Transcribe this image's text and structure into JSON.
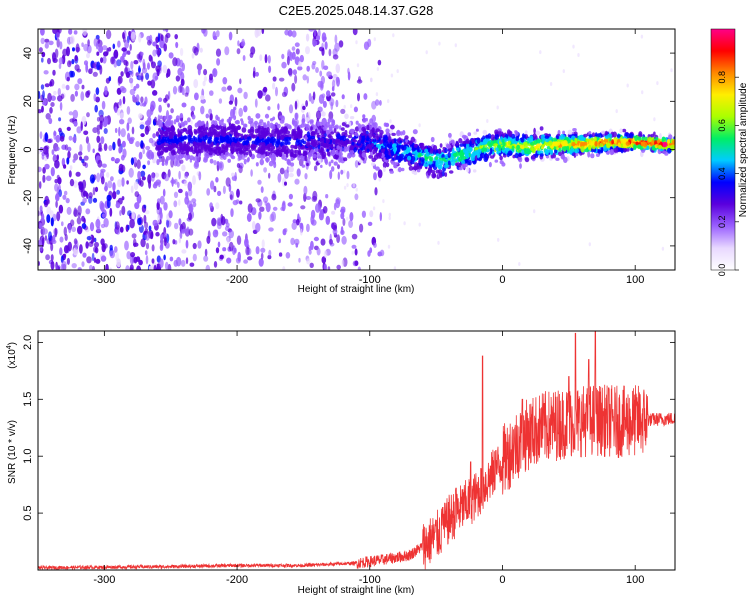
{
  "title": "C2E5.2025.048.14.37.G28",
  "spectrogram": {
    "type": "heatmap",
    "xlabel": "Height of straight line (km)",
    "ylabel": "Frequency (Hz)",
    "xlim": [
      -350,
      130
    ],
    "ylim": [
      -50,
      50
    ],
    "xticks": [
      "-300",
      "-200",
      "-100",
      "0",
      "100"
    ],
    "xtick_values": [
      -300,
      -200,
      -100,
      0,
      100
    ],
    "yticks": [
      "-40",
      "-20",
      "0",
      "20",
      "40"
    ],
    "ytick_values": [
      -40,
      -20,
      0,
      20,
      40
    ],
    "ridge_points": [
      {
        "x": -250,
        "y": 4
      },
      {
        "x": -200,
        "y": 4
      },
      {
        "x": -150,
        "y": 3
      },
      {
        "x": -100,
        "y": 3
      },
      {
        "x": -80,
        "y": 0
      },
      {
        "x": -60,
        "y": -3
      },
      {
        "x": -45,
        "y": -5
      },
      {
        "x": -30,
        "y": -2
      },
      {
        "x": -15,
        "y": 1
      },
      {
        "x": 0,
        "y": 2
      },
      {
        "x": 20,
        "y": 1
      },
      {
        "x": 40,
        "y": 2
      },
      {
        "x": 60,
        "y": 2
      },
      {
        "x": 80,
        "y": 3
      },
      {
        "x": 100,
        "y": 3
      },
      {
        "x": 130,
        "y": 2
      }
    ]
  },
  "colorbar": {
    "label": "Normalized spectral amplitude",
    "range": [
      0,
      1
    ],
    "ticks": [
      "0.0",
      "0.2",
      "0.4",
      "0.6",
      "0.8"
    ],
    "tick_values": [
      0.0,
      0.2,
      0.4,
      0.6,
      0.8
    ],
    "colors": [
      "#ffffff",
      "#e8d8ff",
      "#9a60ff",
      "#5a00dd",
      "#0000ff",
      "#00ccff",
      "#00ee66",
      "#aaff00",
      "#ffee00",
      "#ff8800",
      "#ff0000",
      "#ff0088"
    ]
  },
  "chart_data": {
    "type": "line",
    "xlabel": "Height of straight line (km)",
    "ylabel": "SNR (10 * v/v)",
    "scale_label": "(x10",
    "scale_exp": "4",
    "xlim": [
      -350,
      130
    ],
    "ylim": [
      0,
      2.1
    ],
    "xticks": [
      "-300",
      "-200",
      "-100",
      "0",
      "100"
    ],
    "xtick_values": [
      -300,
      -200,
      -100,
      0,
      100
    ],
    "yticks": [
      "0.5",
      "1.0",
      "1.5",
      "2.0"
    ],
    "ytick_values": [
      0.5,
      1.0,
      1.5,
      2.0
    ],
    "color": "#ee3333",
    "envelope": [
      {
        "x": -350,
        "y": 0.02
      },
      {
        "x": -250,
        "y": 0.03
      },
      {
        "x": -200,
        "y": 0.04
      },
      {
        "x": -150,
        "y": 0.04
      },
      {
        "x": -110,
        "y": 0.06
      },
      {
        "x": -90,
        "y": 0.09
      },
      {
        "x": -70,
        "y": 0.13
      },
      {
        "x": -55,
        "y": 0.25
      },
      {
        "x": -45,
        "y": 0.35
      },
      {
        "x": -40,
        "y": 0.45
      },
      {
        "x": -30,
        "y": 0.55
      },
      {
        "x": -20,
        "y": 0.65
      },
      {
        "x": -10,
        "y": 0.8
      },
      {
        "x": 0,
        "y": 0.95
      },
      {
        "x": 10,
        "y": 1.1
      },
      {
        "x": 20,
        "y": 1.2
      },
      {
        "x": 30,
        "y": 1.25
      },
      {
        "x": 50,
        "y": 1.3
      },
      {
        "x": 70,
        "y": 1.32
      },
      {
        "x": 90,
        "y": 1.3
      },
      {
        "x": 110,
        "y": 1.32
      },
      {
        "x": 130,
        "y": 1.33
      }
    ],
    "spikes": [
      {
        "x": -45,
        "y": 0.55
      },
      {
        "x": -35,
        "y": 0.72
      },
      {
        "x": -24,
        "y": 0.95
      },
      {
        "x": -15,
        "y": 1.88
      },
      {
        "x": -5,
        "y": 1.05
      },
      {
        "x": 15,
        "y": 1.5
      },
      {
        "x": 50,
        "y": 1.7
      },
      {
        "x": 55,
        "y": 2.08
      },
      {
        "x": 65,
        "y": 1.85
      },
      {
        "x": 70,
        "y": 2.1
      },
      {
        "x": 80,
        "y": 1.6
      }
    ]
  }
}
